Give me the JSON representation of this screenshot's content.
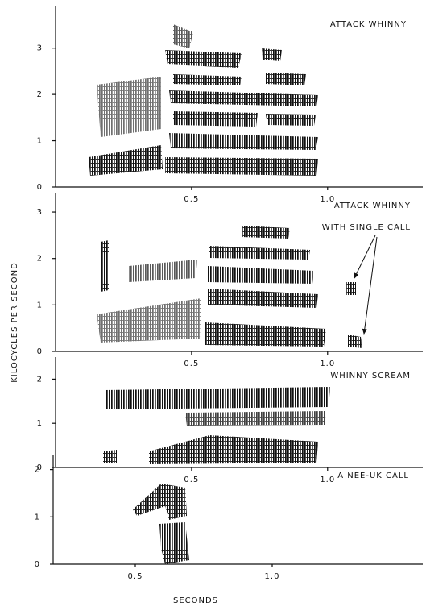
{
  "chart_data": [
    {
      "type": "spectrogram",
      "title": [
        "ATTACK WHINNY"
      ],
      "xlim": [
        0,
        1.35
      ],
      "xticks": [
        0.5,
        {
          "value": 1,
          "label": "1.0"
        }
      ],
      "ylim": [
        0,
        3.9
      ],
      "yticks": [
        0,
        1,
        2,
        3
      ]
    },
    {
      "type": "spectrogram",
      "title": [
        "ATTACK WHINNY",
        "WITH SINGLE CALL"
      ],
      "xlim": [
        0,
        1.35
      ],
      "xticks": [
        0.5,
        {
          "value": 1,
          "label": "1.0"
        }
      ],
      "ylim": [
        0,
        3.4
      ],
      "yticks": [
        0,
        1,
        2,
        3
      ]
    },
    {
      "type": "spectrogram",
      "title": [
        "WHINNY SCREAM"
      ],
      "xlim": [
        0,
        1.35
      ],
      "xticks": [
        0.5,
        {
          "value": 1,
          "label": "1.0"
        }
      ],
      "ylim": [
        0,
        2.5
      ],
      "yticks": [
        0,
        1,
        2
      ]
    },
    {
      "type": "spectrogram",
      "title": [
        "A NEE-UK CALL"
      ],
      "xlim": [
        0.2,
        1.55
      ],
      "xticks": [
        0.5,
        {
          "value": 1,
          "label": "1.0"
        }
      ],
      "ylim": [
        0,
        2.3
      ],
      "yticks": [
        0,
        1,
        2
      ],
      "xlabel": "SECONDS"
    }
  ],
  "ylabel": "KILOCYCLES PER SECOND"
}
